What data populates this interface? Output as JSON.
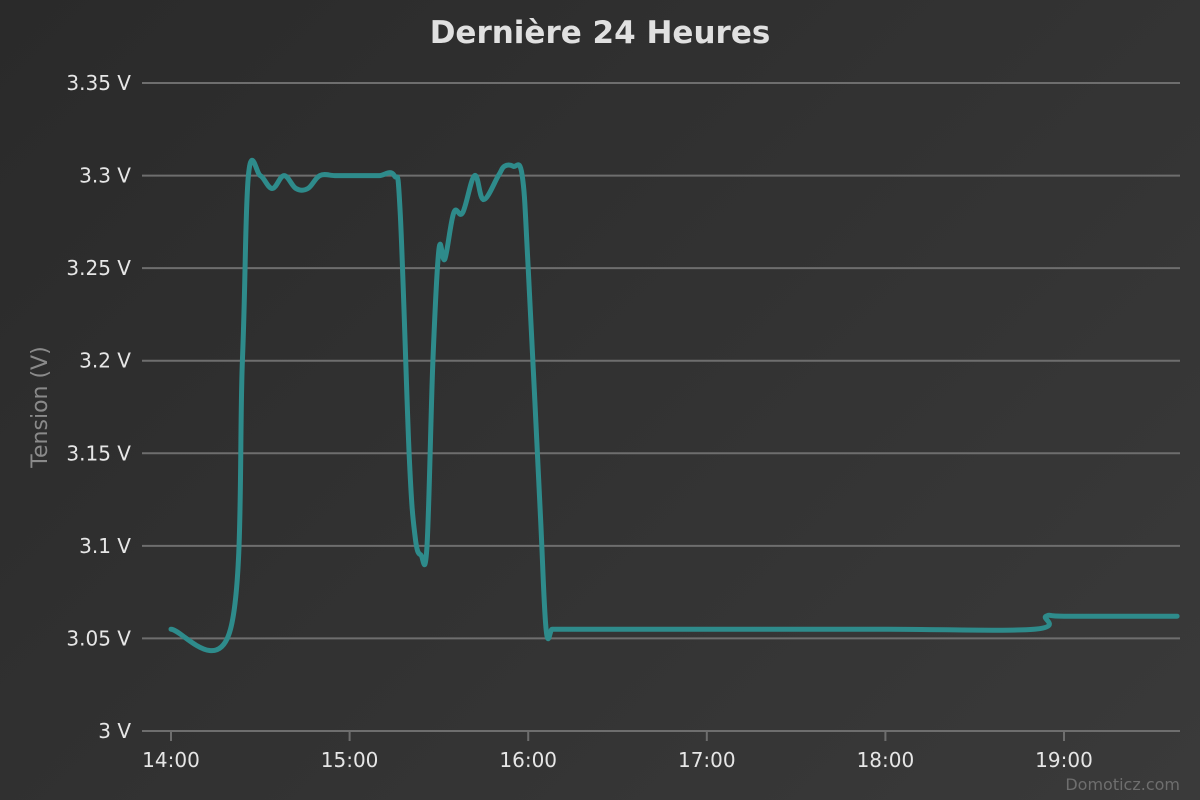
{
  "chart_data": {
    "type": "line",
    "title": "Dernière 24 Heures",
    "xlabel": "",
    "ylabel": "Tension (V)",
    "x_ticks": [
      "14:00",
      "15:00",
      "16:00",
      "17:00",
      "18:00",
      "19:00"
    ],
    "y_ticks": [
      "3 V",
      "3.05 V",
      "3.1 V",
      "3.15 V",
      "3.2 V",
      "3.25 V",
      "3.3 V",
      "3.35 V"
    ],
    "y_tick_values": [
      3.0,
      3.05,
      3.1,
      3.15,
      3.2,
      3.25,
      3.3,
      3.35
    ],
    "ylim": [
      3.0,
      3.35
    ],
    "grid": true,
    "series": [
      {
        "color": "#2e8b8b",
        "x": [
          "14:00",
          "14:20",
          "14:24",
          "14:26",
          "14:30",
          "14:34",
          "14:38",
          "14:42",
          "14:46",
          "14:50",
          "14:55",
          "15:00",
          "15:05",
          "15:10",
          "15:15",
          "15:17",
          "15:20",
          "15:22",
          "15:24",
          "15:26",
          "15:28",
          "15:30",
          "15:32",
          "15:35",
          "15:38",
          "15:42",
          "15:45",
          "15:50",
          "15:52",
          "15:55",
          "15:58",
          "16:00",
          "16:04",
          "16:06",
          "16:08",
          "16:10",
          "16:12",
          "16:30",
          "17:00",
          "18:00",
          "18:50",
          "18:54",
          "19:00",
          "19:30",
          "19:38"
        ],
        "y": [
          3.055,
          3.055,
          3.2,
          3.3,
          3.3,
          3.293,
          3.3,
          3.293,
          3.293,
          3.3,
          3.3,
          3.3,
          3.3,
          3.3,
          3.3,
          3.28,
          3.15,
          3.105,
          3.095,
          3.1,
          3.2,
          3.26,
          3.255,
          3.28,
          3.28,
          3.3,
          3.287,
          3.3,
          3.305,
          3.305,
          3.3,
          3.25,
          3.12,
          3.055,
          3.055,
          3.055,
          3.055,
          3.055,
          3.055,
          3.055,
          3.055,
          3.062,
          3.062,
          3.062,
          3.062
        ]
      }
    ]
  },
  "credits": "Domoticz.com"
}
